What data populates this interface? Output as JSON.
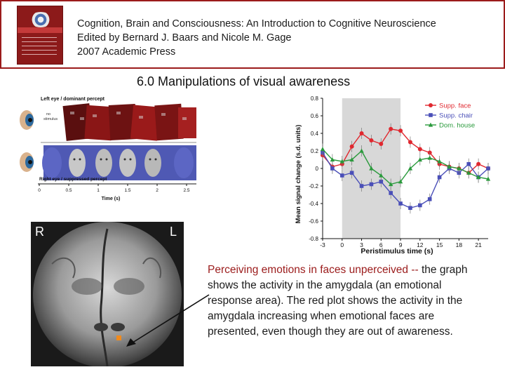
{
  "header": {
    "line1": "Cognition, Brain and Consciousness: An Introduction to Cognitive Neuroscience",
    "line2": "Edited by Bernard J. Baars and Nicole M. Gage",
    "line3": "2007 Academic Press"
  },
  "slide": {
    "title": "6.0 Manipulations of visual awareness"
  },
  "stimulus": {
    "top_label": "Left eye / dominant percept",
    "bottom_label": "Right eye / suppressed percept",
    "side_label_1": "no",
    "side_label_2": "stimulus",
    "time_ticks": [
      "0",
      "0.5",
      "1",
      "1.5",
      "2",
      "2.5"
    ],
    "time_label": "Time (s)"
  },
  "brain": {
    "label_r": "R",
    "label_l": "L"
  },
  "caption": {
    "highlight": "Perceiving emotions in faces unperceived --",
    "rest": " the graph shows the activity in the amygdala (an emotional response area). The red plot shows the activity in the amygdala increasing when emotional faces are presented, even though they are out of awareness."
  },
  "colors": {
    "accent": "#9b1b1b",
    "face_series": "#e0282f",
    "chair_series": "#4a4fb8",
    "house_series": "#2a9a3c",
    "shade": "#d8d8d8"
  },
  "chart_data": {
    "type": "line",
    "xlabel": "Peristimulus time (s)",
    "ylabel": "Mean signal change (s.d. units)",
    "x": [
      -3,
      -1.5,
      0,
      1.5,
      3,
      4.5,
      6,
      7.5,
      9,
      10.5,
      12,
      13.5,
      15,
      16.5,
      18,
      19.5,
      21,
      22.5
    ],
    "xticks": [
      -3,
      0,
      3,
      6,
      9,
      12,
      15,
      18,
      21
    ],
    "ylim": [
      -0.8,
      0.8
    ],
    "yticks": [
      0.8,
      0.6,
      0.4,
      0.2,
      0,
      -0.2,
      -0.4,
      -0.6,
      -0.8
    ],
    "shaded_x": [
      0,
      9
    ],
    "legend_position": "top-right",
    "series": [
      {
        "name": "Supp. face",
        "color": "#e0282f",
        "marker": "circle",
        "values": [
          0.15,
          0.02,
          0.05,
          0.25,
          0.4,
          0.32,
          0.28,
          0.45,
          0.43,
          0.3,
          0.22,
          0.18,
          0.05,
          0.02,
          0.0,
          -0.05,
          0.05,
          0.0
        ]
      },
      {
        "name": "Supp. chair",
        "color": "#4a4fb8",
        "marker": "square",
        "values": [
          0.18,
          0.0,
          -0.08,
          -0.05,
          -0.2,
          -0.18,
          -0.15,
          -0.28,
          -0.4,
          -0.45,
          -0.42,
          -0.35,
          -0.1,
          0.0,
          -0.05,
          0.05,
          -0.1,
          0.0
        ]
      },
      {
        "name": "Dom. house",
        "color": "#2a9a3c",
        "marker": "triangle",
        "values": [
          0.22,
          0.1,
          0.08,
          0.1,
          0.2,
          0.0,
          -0.08,
          -0.18,
          -0.15,
          0.0,
          0.1,
          0.12,
          0.08,
          0.02,
          0.0,
          -0.05,
          -0.1,
          -0.12
        ]
      }
    ]
  }
}
